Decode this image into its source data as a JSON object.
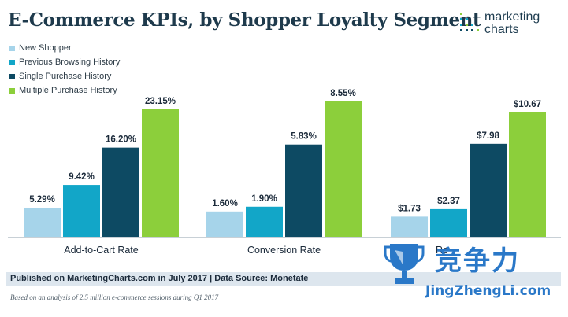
{
  "header": {
    "title": "E-Commerce KPIs, by Shopper Loyalty Segment",
    "logo_line1": "marketing",
    "logo_line2": "charts"
  },
  "colors": {
    "new_shopper": "#a6d4ea",
    "previous_browsing": "#12a6c8",
    "single_purchase": "#0d4a63",
    "multiple_purchase": "#8ccf3b"
  },
  "chart_data": {
    "type": "bar",
    "title": "E-Commerce KPIs, by Shopper Loyalty Segment",
    "legend_position": "top-left",
    "grid": false,
    "groups": [
      {
        "category": "Add-to-Cart Rate",
        "values": [
          5.29,
          9.42,
          16.2,
          23.15
        ],
        "labels": [
          "5.29%",
          "9.42%",
          "16.20%",
          "23.15%"
        ]
      },
      {
        "category": "Conversion Rate",
        "values": [
          1.6,
          1.9,
          5.83,
          8.55
        ],
        "labels": [
          "1.60%",
          "1.90%",
          "5.83%",
          "8.55%"
        ]
      },
      {
        "category": "Re",
        "values": [
          1.73,
          2.37,
          7.98,
          10.67
        ],
        "labels": [
          "$1.73",
          "$2.37",
          "$7.98",
          "$10.67"
        ]
      }
    ],
    "series": [
      {
        "name": "New Shopper",
        "color": "#a6d4ea"
      },
      {
        "name": "Previous Browsing History",
        "color": "#12a6c8"
      },
      {
        "name": "Single Purchase History",
        "color": "#0d4a63"
      },
      {
        "name": "Multiple Purchase History",
        "color": "#8ccf3b"
      }
    ]
  },
  "footer": {
    "source": "Published on MarketingCharts.com in July 2017 | Data Source: Monetate",
    "note": "Based on an analysis of 2.5 million e-commerce sessions during Q1 2017"
  },
  "watermark": {
    "chinese": "竞争力",
    "english": "JingZhengLi.com"
  }
}
